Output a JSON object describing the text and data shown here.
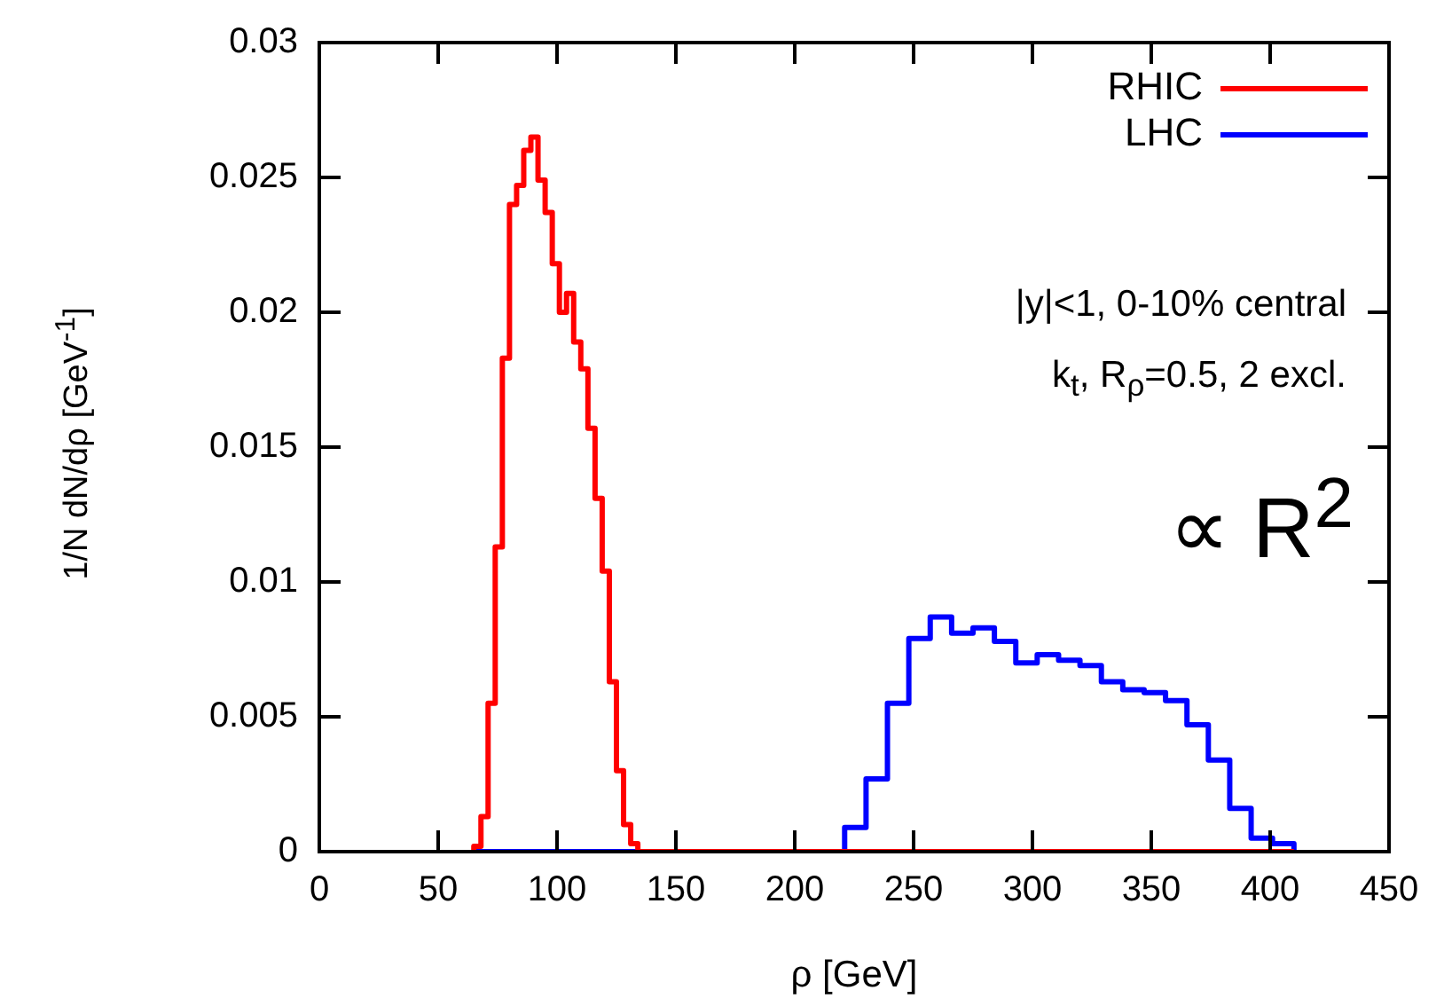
{
  "chart_data": {
    "type": "histogram",
    "xlabel": "ρ [GeV]",
    "ylabel": "1/N dN/dρ [GeV$^{-1}$]",
    "xlim": [
      0,
      450
    ],
    "xticks": [
      0,
      50,
      100,
      150,
      200,
      250,
      300,
      350,
      400,
      450
    ],
    "ylim": [
      0,
      0.03
    ],
    "yticks": [
      0,
      0.005,
      0.01,
      0.015,
      0.02,
      0.025,
      0.03
    ],
    "grid": false,
    "legend": "top right",
    "bins": [
      65,
      68,
      71,
      74,
      77,
      80,
      83,
      86,
      89,
      92,
      95,
      98,
      101,
      104,
      107,
      110,
      113,
      116,
      119,
      122,
      125,
      128,
      131,
      134,
      137,
      140,
      143,
      146,
      149,
      152,
      155,
      158,
      161,
      164,
      167,
      170,
      173,
      176,
      179,
      182,
      185,
      188,
      191,
      194,
      197,
      200,
      203,
      206,
      209,
      212,
      215,
      218,
      221,
      224,
      227,
      230,
      233,
      236,
      239,
      242,
      245,
      248,
      251,
      254,
      257,
      260,
      263,
      266,
      269,
      272,
      275,
      278,
      281,
      284,
      287,
      290,
      293,
      296,
      299,
      302,
      305,
      308,
      311,
      314,
      317,
      320,
      323,
      326,
      329,
      332,
      335,
      338,
      341,
      344,
      347,
      350,
      353,
      356,
      359,
      362,
      365,
      368,
      371,
      374,
      377,
      380,
      383,
      386,
      389,
      392,
      395,
      398,
      401,
      404,
      407,
      410
    ],
    "series": [
      {
        "name": "RHIC",
        "color": "#ff0000",
        "values": [
          0.0002,
          0.0013,
          0.0055,
          0.0113,
          0.0183,
          0.024,
          0.0247,
          0.026,
          0.0265,
          0.0249,
          0.0237,
          0.0218,
          0.02,
          0.0207,
          0.0189,
          0.0179,
          0.0157,
          0.0131,
          0.0104,
          0.0063,
          0.003,
          0.001,
          0.0003,
          0,
          0,
          0,
          0,
          0,
          0,
          0,
          0,
          0,
          0,
          0,
          0,
          0,
          0,
          0,
          0,
          0,
          0,
          0,
          0,
          0,
          0,
          0,
          0,
          0,
          0,
          0,
          0,
          0,
          0,
          0,
          0,
          0,
          0,
          0,
          0,
          0,
          0,
          0,
          0,
          0,
          0,
          0,
          0,
          0,
          0,
          0,
          0,
          0,
          0,
          0,
          0,
          0,
          0,
          0,
          0,
          0,
          0,
          0,
          0,
          0,
          0,
          0,
          0,
          0,
          0,
          0,
          0,
          0,
          0,
          0,
          0,
          0,
          0,
          0,
          0,
          0,
          0,
          0,
          0,
          0,
          0,
          0,
          0,
          0,
          0,
          0,
          0,
          0,
          0,
          0,
          0
        ]
      },
      {
        "name": "LHC",
        "color": "#0000ff",
        "values": [
          0,
          0,
          0,
          0,
          0,
          0,
          0,
          0,
          0,
          0,
          0,
          0,
          0,
          0,
          0,
          0,
          0,
          0,
          0,
          0,
          0,
          0,
          0,
          0,
          0,
          0,
          0,
          0,
          0,
          0,
          0,
          0,
          0,
          0,
          0,
          0,
          0,
          0,
          0,
          0,
          0,
          0,
          0,
          0,
          0,
          0,
          0,
          0,
          0,
          0,
          0,
          0,
          0.0009,
          0.0009,
          0.0009,
          0.0027,
          0.0027,
          0.0027,
          0.0055,
          0.0055,
          0.0055,
          0.0079,
          0.0079,
          0.0079,
          0.0087,
          0.0087,
          0.0087,
          0.0081,
          0.0081,
          0.0081,
          0.0083,
          0.0083,
          0.0083,
          0.0078,
          0.0078,
          0.0078,
          0.007,
          0.007,
          0.007,
          0.0073,
          0.0073,
          0.0073,
          0.0071,
          0.0071,
          0.0071,
          0.0069,
          0.0069,
          0.0069,
          0.0063,
          0.0063,
          0.0063,
          0.006,
          0.006,
          0.006,
          0.0059,
          0.0059,
          0.0059,
          0.0056,
          0.0056,
          0.0056,
          0.0047,
          0.0047,
          0.0047,
          0.0034,
          0.0034,
          0.0034,
          0.0016,
          0.0016,
          0.0016,
          0.0005,
          0.0005,
          0.0005,
          0.0003,
          0.0003,
          0.0003
        ]
      }
    ],
    "annotations": [
      "|y|<1, 0-10% central",
      "k$_{t}$, R$_{ρ}$=0.5, 2 excl.",
      "∝ R$^{2}$"
    ]
  }
}
